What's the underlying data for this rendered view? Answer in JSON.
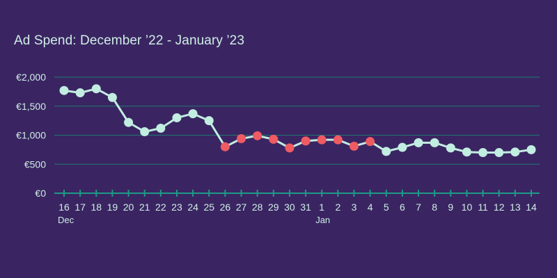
{
  "chart_data": {
    "type": "line",
    "title": "Ad Spend: December ’22 - January ’23",
    "xlabel": "",
    "ylabel": "",
    "ylim": [
      0,
      2000
    ],
    "y_ticks": [
      "€0",
      "€500",
      "€1,000",
      "€1,500",
      "€2,000"
    ],
    "y_tick_values": [
      0,
      500,
      1000,
      1500,
      2000
    ],
    "grid": true,
    "categories": [
      "16",
      "17",
      "18",
      "19",
      "20",
      "21",
      "22",
      "23",
      "24",
      "25",
      "26",
      "27",
      "28",
      "29",
      "30",
      "31",
      "1",
      "2",
      "3",
      "4",
      "5",
      "6",
      "7",
      "8",
      "9",
      "10",
      "11",
      "12",
      "13",
      "14"
    ],
    "month_labels": [
      {
        "index": 0,
        "label": "Dec"
      },
      {
        "index": 16,
        "label": "Jan"
      }
    ],
    "values": [
      1770,
      1730,
      1800,
      1650,
      1220,
      1060,
      1120,
      1300,
      1370,
      1250,
      800,
      940,
      990,
      930,
      780,
      900,
      920,
      920,
      810,
      890,
      720,
      790,
      870,
      870,
      780,
      710,
      700,
      700,
      710,
      750
    ],
    "highlighted": [
      false,
      false,
      false,
      false,
      false,
      false,
      false,
      false,
      false,
      false,
      true,
      true,
      true,
      true,
      true,
      true,
      true,
      true,
      true,
      true,
      false,
      false,
      false,
      false,
      false,
      false,
      false,
      false,
      false,
      false
    ],
    "colors": {
      "background": "#3a2562",
      "line": "#c2ede1",
      "point": "#c2ede1",
      "highlight_point": "#ef5b63",
      "grid": "#1f7a73",
      "axis": "#1f9a86",
      "text": "#cfeee6"
    }
  }
}
